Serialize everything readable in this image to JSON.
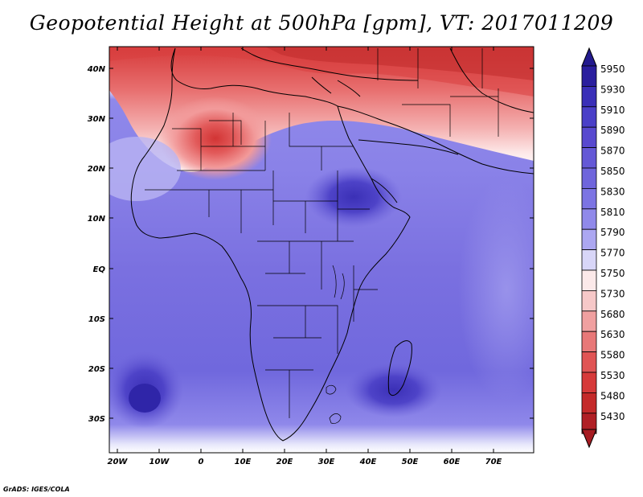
{
  "title": "Geopotential Height at 500hPa [gpm], VT: 2017011209",
  "credit": "GrADS: IGES/COLA",
  "map": {
    "lat_labels": [
      "40N",
      "30N",
      "20N",
      "10N",
      "EQ",
      "10S",
      "20S",
      "30S"
    ],
    "lon_labels": [
      "20W",
      "10W",
      "0",
      "10E",
      "20E",
      "30E",
      "40E",
      "50E",
      "60E",
      "70E"
    ]
  },
  "colorbar": {
    "levels": [
      "5950",
      "5930",
      "5910",
      "5890",
      "5870",
      "5850",
      "5830",
      "5810",
      "5790",
      "5770",
      "5750",
      "5730",
      "5680",
      "5630",
      "5580",
      "5530",
      "5480",
      "5430"
    ],
    "colors": [
      "#2a1e9e",
      "#3a2fb8",
      "#4a3fc8",
      "#5849cf",
      "#6458d6",
      "#6f65dc",
      "#7c74e3",
      "#9089ea",
      "#aca7f1",
      "#d8d6f8",
      "#fbe9e9",
      "#f6c8c8",
      "#f0a0a0",
      "#e87878",
      "#e05454",
      "#d63a3a",
      "#c42a2a",
      "#b01f25"
    ],
    "arrow_top_color": "#231a8e",
    "arrow_bottom_color": "#a61c22"
  }
}
